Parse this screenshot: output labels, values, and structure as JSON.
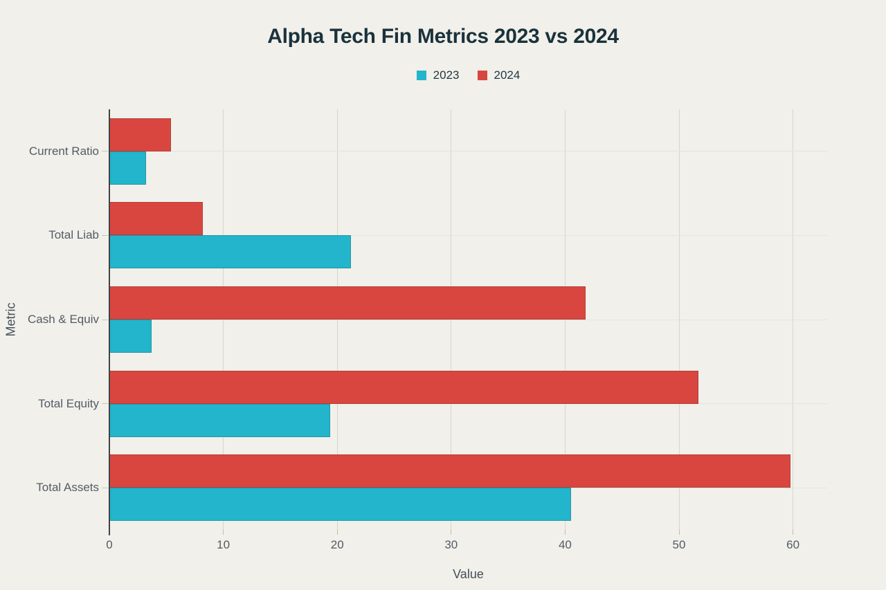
{
  "chart_data": {
    "type": "bar",
    "orientation": "horizontal",
    "title": "Alpha Tech Fin Metrics 2023 vs 2024",
    "categories": [
      "Current Ratio",
      "Total Liab",
      "Cash & Equiv",
      "Total Equity",
      "Total Assets"
    ],
    "series": [
      {
        "name": "2023",
        "color": "#22b5cb",
        "values": [
          3.2,
          21.2,
          3.7,
          19.4,
          40.5
        ]
      },
      {
        "name": "2024",
        "color": "#d9463f",
        "values": [
          5.4,
          8.2,
          41.8,
          51.7,
          59.8
        ]
      }
    ],
    "xlabel": "Value",
    "ylabel": "Metric",
    "xlim": [
      0,
      63
    ],
    "xticks": [
      0,
      10,
      20,
      30,
      40,
      50,
      60
    ],
    "grid": true,
    "legend_position": "top-center"
  },
  "colors": {
    "background": "#f1f0ea",
    "title_text": "#1a323c",
    "legend_text": "#223844",
    "axis_text": "#515c66",
    "axis_line": "#424242",
    "grid_vertical": "#d6d5cd",
    "grid_horizontal": "#e4e3dc"
  }
}
